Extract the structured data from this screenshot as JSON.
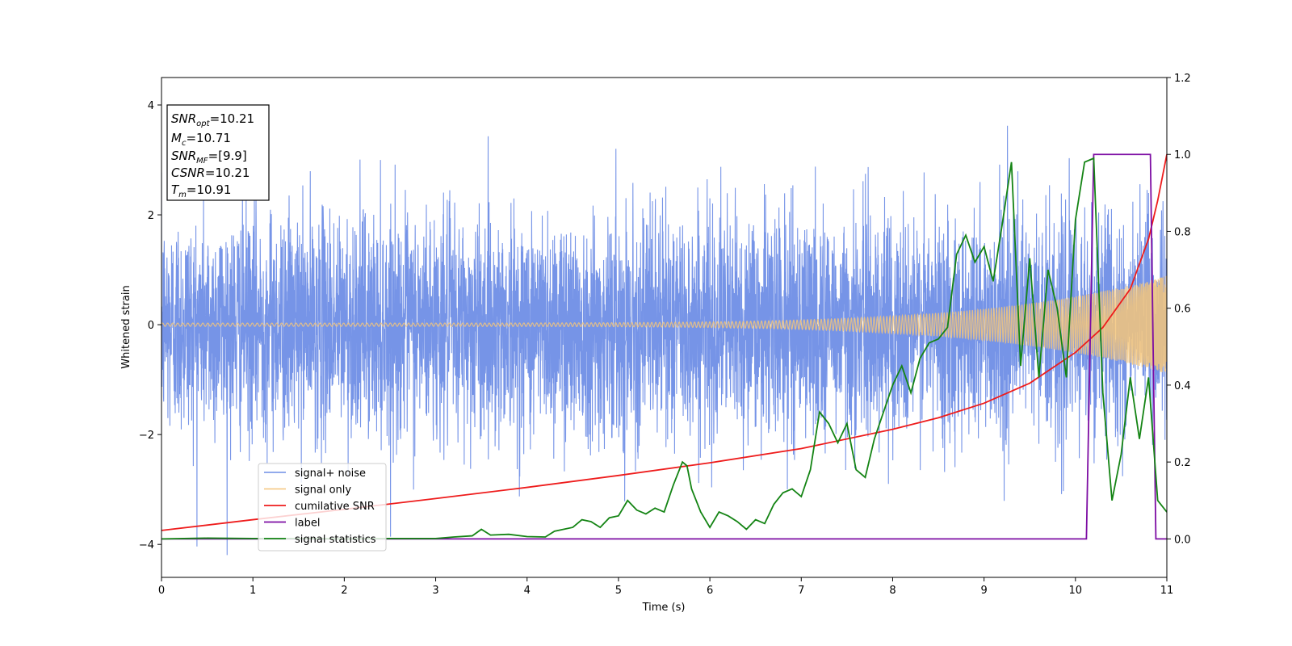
{
  "chart_data": {
    "type": "line",
    "title": "",
    "xlabel": "Time (s)",
    "ylabel": "Whitened strain",
    "y2label": "",
    "xlim": [
      0,
      11
    ],
    "ylim": [
      -4.6,
      4.5
    ],
    "y2lim": [
      -0.1,
      1.2
    ],
    "xticks": [
      0,
      1,
      2,
      3,
      4,
      5,
      6,
      7,
      8,
      9,
      10,
      11
    ],
    "yticks": [
      -4,
      -2,
      0,
      2,
      4
    ],
    "y2ticks": [
      0.0,
      0.2,
      0.4,
      0.6,
      0.8,
      1.0,
      1.2
    ],
    "y2ticklabels": [
      "0.0",
      "0.2",
      "0.4",
      "0.6",
      "0.8",
      "1.0",
      "1.2"
    ],
    "grid": false,
    "legend_position": "lower-left",
    "annotation": {
      "lines": [
        {
          "name": "SNR",
          "sub": "opt",
          "value": "=10.21"
        },
        {
          "name": "M",
          "sub": "c",
          "value": "=10.71"
        },
        {
          "name": "SNR",
          "sub": "MF",
          "value": "=[9.9]"
        },
        {
          "name": "CSNR",
          "sub": "",
          "value": "=10.21"
        },
        {
          "name": "T",
          "sub": "m",
          "value": "=10.91"
        }
      ]
    },
    "series": [
      {
        "name": "signal+ noise",
        "axis": "left",
        "color": "#6f8ee6",
        "style": "noise",
        "noise_std": 1.0,
        "x_range": [
          0,
          11
        ]
      },
      {
        "name": "signal only",
        "axis": "left",
        "color": "#f5c57a",
        "style": "chirp",
        "amplitude_start": 0.03,
        "amplitude_end": 0.9,
        "x_range": [
          0,
          11
        ]
      },
      {
        "name": "cumilative SNR",
        "axis": "right",
        "x": [
          0,
          1,
          2,
          3,
          4,
          5,
          6,
          7,
          8,
          8.5,
          9,
          9.5,
          10,
          10.3,
          10.6,
          10.8,
          10.9,
          11
        ],
        "y": [
          0.022,
          0.05,
          0.077,
          0.105,
          0.134,
          0.165,
          0.198,
          0.235,
          0.285,
          0.315,
          0.353,
          0.405,
          0.485,
          0.55,
          0.65,
          0.78,
          0.88,
          1.0
        ],
        "color": "#ee1c1c"
      },
      {
        "name": "label",
        "axis": "right",
        "x": [
          0,
          10.12,
          10.2,
          10.82,
          10.88,
          11
        ],
        "y": [
          0,
          0,
          1,
          1,
          0,
          0
        ],
        "color": "#7d0da3"
      },
      {
        "name": "signal statistics",
        "axis": "right",
        "x": [
          0,
          0.5,
          1,
          1.5,
          2,
          2.5,
          3,
          3.2,
          3.4,
          3.5,
          3.6,
          3.8,
          4.0,
          4.2,
          4.3,
          4.5,
          4.6,
          4.7,
          4.8,
          4.9,
          5.0,
          5.1,
          5.2,
          5.3,
          5.4,
          5.5,
          5.6,
          5.7,
          5.75,
          5.8,
          5.9,
          6.0,
          6.1,
          6.2,
          6.3,
          6.4,
          6.5,
          6.6,
          6.7,
          6.8,
          6.9,
          7.0,
          7.1,
          7.2,
          7.3,
          7.4,
          7.5,
          7.6,
          7.7,
          7.8,
          7.9,
          8.0,
          8.1,
          8.2,
          8.3,
          8.4,
          8.5,
          8.6,
          8.7,
          8.8,
          8.9,
          9.0,
          9.1,
          9.2,
          9.3,
          9.4,
          9.5,
          9.6,
          9.7,
          9.8,
          9.9,
          10.0,
          10.1,
          10.2,
          10.3,
          10.4,
          10.5,
          10.6,
          10.7,
          10.8,
          10.9,
          11.0
        ],
        "y": [
          0,
          0.002,
          0.001,
          0.001,
          0.0,
          0.001,
          0.001,
          0.005,
          0.008,
          0.025,
          0.01,
          0.012,
          0.006,
          0.005,
          0.02,
          0.03,
          0.05,
          0.045,
          0.03,
          0.055,
          0.06,
          0.1,
          0.075,
          0.065,
          0.08,
          0.07,
          0.14,
          0.2,
          0.19,
          0.13,
          0.07,
          0.03,
          0.07,
          0.06,
          0.045,
          0.025,
          0.05,
          0.04,
          0.09,
          0.12,
          0.13,
          0.11,
          0.18,
          0.33,
          0.3,
          0.25,
          0.3,
          0.18,
          0.16,
          0.26,
          0.33,
          0.4,
          0.45,
          0.38,
          0.47,
          0.51,
          0.52,
          0.55,
          0.74,
          0.79,
          0.72,
          0.76,
          0.67,
          0.82,
          0.98,
          0.45,
          0.73,
          0.42,
          0.7,
          0.6,
          0.42,
          0.83,
          0.98,
          0.99,
          0.38,
          0.1,
          0.22,
          0.42,
          0.26,
          0.42,
          0.1,
          0.07
        ],
        "color": "#148414"
      }
    ]
  }
}
